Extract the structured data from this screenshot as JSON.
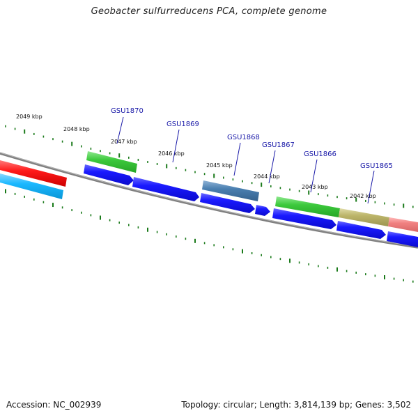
{
  "header": {
    "title": "Geobacter sulfurreducens PCA, complete genome"
  },
  "footer": {
    "accession": "Accession: NC_002939",
    "topology": "Topology: circular; Length: 3,814,139 bp; Genes: 3,502"
  },
  "map": {
    "kbp_labels": [
      "2049 kbp",
      "2048 kbp",
      "2047 kbp",
      "2046 kbp",
      "2045 kbp",
      "2044 kbp",
      "2043 kbp",
      "2042 kbp"
    ],
    "gene_labels": [
      "GSU1870",
      "GSU1869",
      "GSU1868",
      "GSU1867",
      "GSU1866",
      "GSU1865"
    ],
    "colors": {
      "backbone": "#808080",
      "tick": "#1a7a1a",
      "cds_blue": "#1a1aff",
      "green": "#3cc93c",
      "steelblue": "#4a7fb0",
      "olive": "#bcb56a",
      "pink": "#f08080",
      "red": "#ff1a1a",
      "cyan": "#1ab8ff",
      "label_line": "#1a1aa8"
    }
  }
}
